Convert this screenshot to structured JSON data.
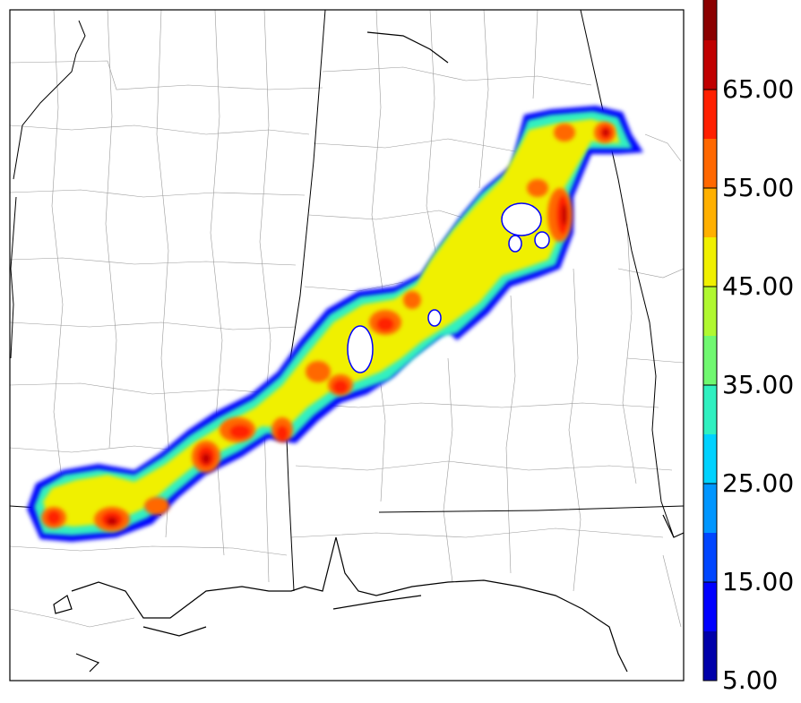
{
  "map": {
    "features": [
      "state-borders",
      "county-borders",
      "gulf-coastline"
    ]
  },
  "colorbar": {
    "colors": [
      "#0000aa",
      "#0000ff",
      "#0046ff",
      "#0096ff",
      "#00d2ff",
      "#30f0c0",
      "#70f870",
      "#b0f830",
      "#f0f000",
      "#ffb000",
      "#ff6800",
      "#ff2000",
      "#c00000",
      "#8b0000"
    ],
    "extend": "max",
    "tick_labels": [
      "5.00",
      "15.00",
      "25.00",
      "35.00",
      "45.00",
      "55.00",
      "65.00"
    ]
  }
}
